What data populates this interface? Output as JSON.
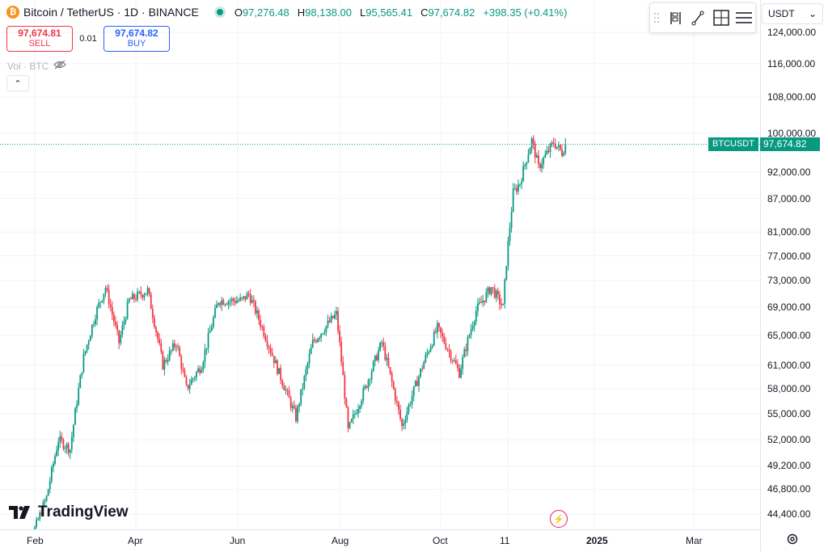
{
  "header": {
    "coin_glyph": "₿",
    "title": "Bitcoin / TetherUS · 1D · BINANCE",
    "ohlc": {
      "o_label": "O",
      "o_value": "97,276.48",
      "h_label": "H",
      "h_value": "98,138.00",
      "l_label": "L",
      "l_value": "95,565.41",
      "c_label": "C",
      "c_value": "97,674.82",
      "change": "+398.35 (+0.41%)"
    }
  },
  "trade": {
    "sell_price": "97,674.81",
    "sell_label": "SELL",
    "spread": "0.01",
    "buy_price": "97,674.82",
    "buy_label": "BUY"
  },
  "volume_label": "Vol · BTC",
  "collapse_glyph": "⌃",
  "currency": {
    "value": "USDT",
    "glyph": "⌄"
  },
  "price_axis": [
    "124,000.00",
    "116,000.00",
    "108,000.00",
    "100,000.00",
    "92,000.00",
    "87,000.00",
    "81,000.00",
    "77,000.00",
    "73,000.00",
    "69,000.00",
    "65,000.00",
    "61,000.00",
    "58,000.00",
    "55,000.00",
    "52,000.00",
    "49,200.00",
    "46,800.00",
    "44,400.00"
  ],
  "time_axis": [
    {
      "label": "Feb",
      "bold": false
    },
    {
      "label": "Apr",
      "bold": false
    },
    {
      "label": "Jun",
      "bold": false
    },
    {
      "label": "Aug",
      "bold": false
    },
    {
      "label": "Oct",
      "bold": false
    },
    {
      "label": "11",
      "bold": false
    },
    {
      "label": "2025",
      "bold": true
    },
    {
      "label": "Mar",
      "bold": false
    }
  ],
  "last_price": {
    "symbol": "BTCUSDT",
    "value": "97,674.82"
  },
  "watermark": "TradingView",
  "colors": {
    "up": "#089981",
    "down": "#f23645",
    "sell": "#f23645",
    "buy": "#2962ff",
    "brand_coin": "#f7931a"
  },
  "chart_data": {
    "type": "candlestick",
    "series_name": "BTCUSDT",
    "x_range": [
      "2024-01",
      "2025-03"
    ],
    "ylim": [
      43000,
      126000
    ],
    "y_scale": "log",
    "trend_points": [
      {
        "date": "2024-01-22",
        "value": 40000
      },
      {
        "date": "2024-02-01",
        "value": 43000
      },
      {
        "date": "2024-02-08",
        "value": 46000
      },
      {
        "date": "2024-02-15",
        "value": 52000
      },
      {
        "date": "2024-02-22",
        "value": 51000
      },
      {
        "date": "2024-03-01",
        "value": 62000
      },
      {
        "date": "2024-03-08",
        "value": 68000
      },
      {
        "date": "2024-03-14",
        "value": 72000
      },
      {
        "date": "2024-03-22",
        "value": 64000
      },
      {
        "date": "2024-03-28",
        "value": 70000
      },
      {
        "date": "2024-04-08",
        "value": 71500
      },
      {
        "date": "2024-04-17",
        "value": 61000
      },
      {
        "date": "2024-04-25",
        "value": 64000
      },
      {
        "date": "2024-05-01",
        "value": 58000
      },
      {
        "date": "2024-05-10",
        "value": 61000
      },
      {
        "date": "2024-05-20",
        "value": 70000
      },
      {
        "date": "2024-06-03",
        "value": 70000
      },
      {
        "date": "2024-06-07",
        "value": 71000
      },
      {
        "date": "2024-06-24",
        "value": 60500
      },
      {
        "date": "2024-07-05",
        "value": 54500
      },
      {
        "date": "2024-07-15",
        "value": 64000
      },
      {
        "date": "2024-07-29",
        "value": 68000
      },
      {
        "date": "2024-08-05",
        "value": 53000
      },
      {
        "date": "2024-08-15",
        "value": 58000
      },
      {
        "date": "2024-08-25",
        "value": 64000
      },
      {
        "date": "2024-09-06",
        "value": 53500
      },
      {
        "date": "2024-09-20",
        "value": 62000
      },
      {
        "date": "2024-09-27",
        "value": 66000
      },
      {
        "date": "2024-10-10",
        "value": 60000
      },
      {
        "date": "2024-10-20",
        "value": 68500
      },
      {
        "date": "2024-10-29",
        "value": 72000
      },
      {
        "date": "2024-11-05",
        "value": 69000
      },
      {
        "date": "2024-11-07",
        "value": 76000
      },
      {
        "date": "2024-11-11",
        "value": 88000
      },
      {
        "date": "2024-11-15",
        "value": 90000
      },
      {
        "date": "2024-11-22",
        "value": 98500
      },
      {
        "date": "2024-11-26",
        "value": 93000
      },
      {
        "date": "2024-12-05",
        "value": 98000
      },
      {
        "date": "2024-12-10",
        "value": 96000
      },
      {
        "date": "2024-12-12",
        "value": 97674.82
      }
    ]
  }
}
